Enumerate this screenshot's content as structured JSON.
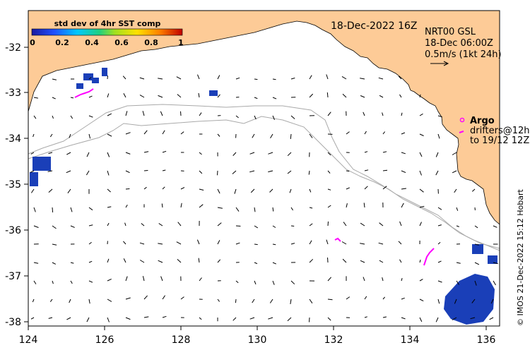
{
  "header": {
    "date_label": "18-Dec-2022 16Z"
  },
  "colorbar": {
    "title": "std dev of 4hr SST comp",
    "ticks": [
      "0",
      "0.2",
      "0.4",
      "0.6",
      "0.8",
      "1"
    ]
  },
  "product_info": {
    "line1": "NRT00 GSL",
    "line2": "18-Dec 06:00Z",
    "line3": "0.5m/s (1kt 24h)"
  },
  "legend": {
    "argo_label": "Argo",
    "drifters_line1": "drifters@12h",
    "drifters_line2": "to 19/12 12Z"
  },
  "credit": "© IMOS 21-Dec-2022 15:12 Hobart",
  "axes": {
    "x_ticks": [
      "124",
      "126",
      "128",
      "130",
      "132",
      "134",
      "136"
    ],
    "y_ticks": [
      "-32",
      "-33",
      "-34",
      "-35",
      "-36",
      "-37",
      "-38"
    ]
  },
  "colors": {
    "land": "#fdcb97",
    "coast": "#000000",
    "isobath": "#a9a9a9",
    "argo": "#ff00ff",
    "sst_patch": "#1a3fb8"
  }
}
